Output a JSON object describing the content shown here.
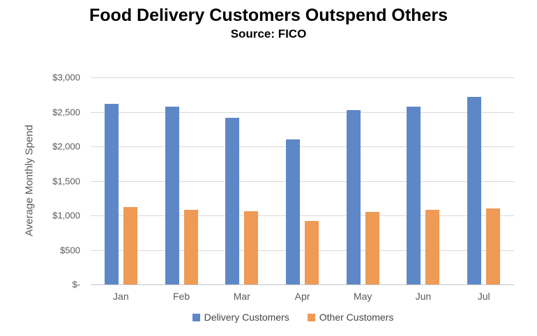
{
  "header": {
    "title": "Food Delivery Customers Outspend Others",
    "subtitle": "Source: FICO"
  },
  "chart_data": {
    "type": "bar",
    "title": "Food Delivery Customers Outspend Others",
    "subtitle": "Source: FICO",
    "categories": [
      "Jan",
      "Feb",
      "Mar",
      "Apr",
      "May",
      "Jun",
      "Jul"
    ],
    "series": [
      {
        "name": "Delivery Customers",
        "color": "#5E87C8",
        "values": [
          2620,
          2580,
          2410,
          2100,
          2530,
          2580,
          2715
        ]
      },
      {
        "name": "Other Customers",
        "color": "#EF9A55",
        "values": [
          1125,
          1080,
          1060,
          920,
          1055,
          1080,
          1100
        ]
      }
    ],
    "xlabel": "",
    "ylabel": "Average Monthly Spend",
    "ylim": [
      0,
      3000
    ],
    "ytick_step": 500,
    "ytick_labels_bottom_up": [
      "$-",
      "$500",
      "$1,000",
      "$1,500",
      "$2,000",
      "$2,500",
      "$3,000"
    ],
    "grid": true,
    "legend_position": "bottom",
    "colors": {
      "gridline": "#D9D9D9",
      "axis_line": "#C6C6C6",
      "axis_text": "#595959",
      "legend_text": "#444444",
      "title": "#000000",
      "background": "#FFFFFF"
    }
  }
}
